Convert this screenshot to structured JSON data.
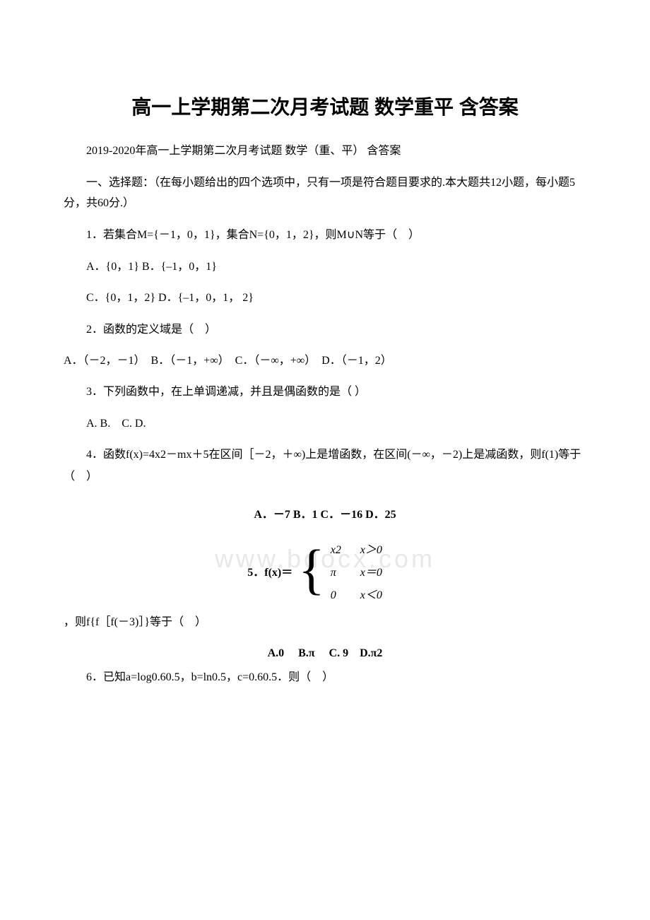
{
  "document": {
    "colors": {
      "text": "#000000",
      "background": "#ffffff",
      "watermark": "#e8e8e8"
    },
    "typography": {
      "title_fontsize": 28,
      "body_fontsize": 16,
      "title_font": "SimHei",
      "body_font": "SimSun"
    },
    "watermark_text": "www.bdocx.com",
    "main_title": "高一上学期第二次月考试题 数学重平 含答案",
    "subtitle": "2019-2020年高一上学期第二次月考试题 数学（重、平） 含答案",
    "section_intro": "一、选择题：（在每小题给出的四个选项中，只有一项是符合题目要求的.本大题共12小题，每小题5分，共60分.）",
    "q1": {
      "text": "1．若集合M={－1，0，1}，集合N={0，1，2}，则M∪N等于（　）",
      "opt_a": "A．{0，1}  B．{–1，0，1}",
      "opt_c": "C．{0，1，2}  D．{–1，0，1， 2}"
    },
    "q2": {
      "text": "2．函数的定义域是（　）",
      "opts": "A．（－2，－1）　B．（－1，+∞）　C．（－∞，+∞）　D．（－1，2）"
    },
    "q3": {
      "text": "3．下列函数中，在上单调递减，并且是偶函数的是（ ）",
      "opts": "A.  B.　C. D."
    },
    "q4": {
      "text": "4．函数f(x)=4x2－mx＋5在区间［－2，＋∞)上是增函数，在区间(－∞，－2)上是减函数，则f(1)等于（　）",
      "opts": "A．－7 B．1 C．－16 D．25"
    },
    "q5": {
      "label": "5．f(x)＝",
      "cases": [
        {
          "val": "x2",
          "cond": "x＞0"
        },
        {
          "val": "π",
          "cond": "x＝0"
        },
        {
          "val": "0",
          "cond": "x＜0"
        }
      ],
      "after": "，则f{f［f(－3)］}等于（　）",
      "opts": "A.0　 B.π　 C. 9　D.π2"
    },
    "q6": {
      "text": "6．已知a=log0.60.5，b=ln0.5，c=0.60.5．则（　）"
    }
  }
}
